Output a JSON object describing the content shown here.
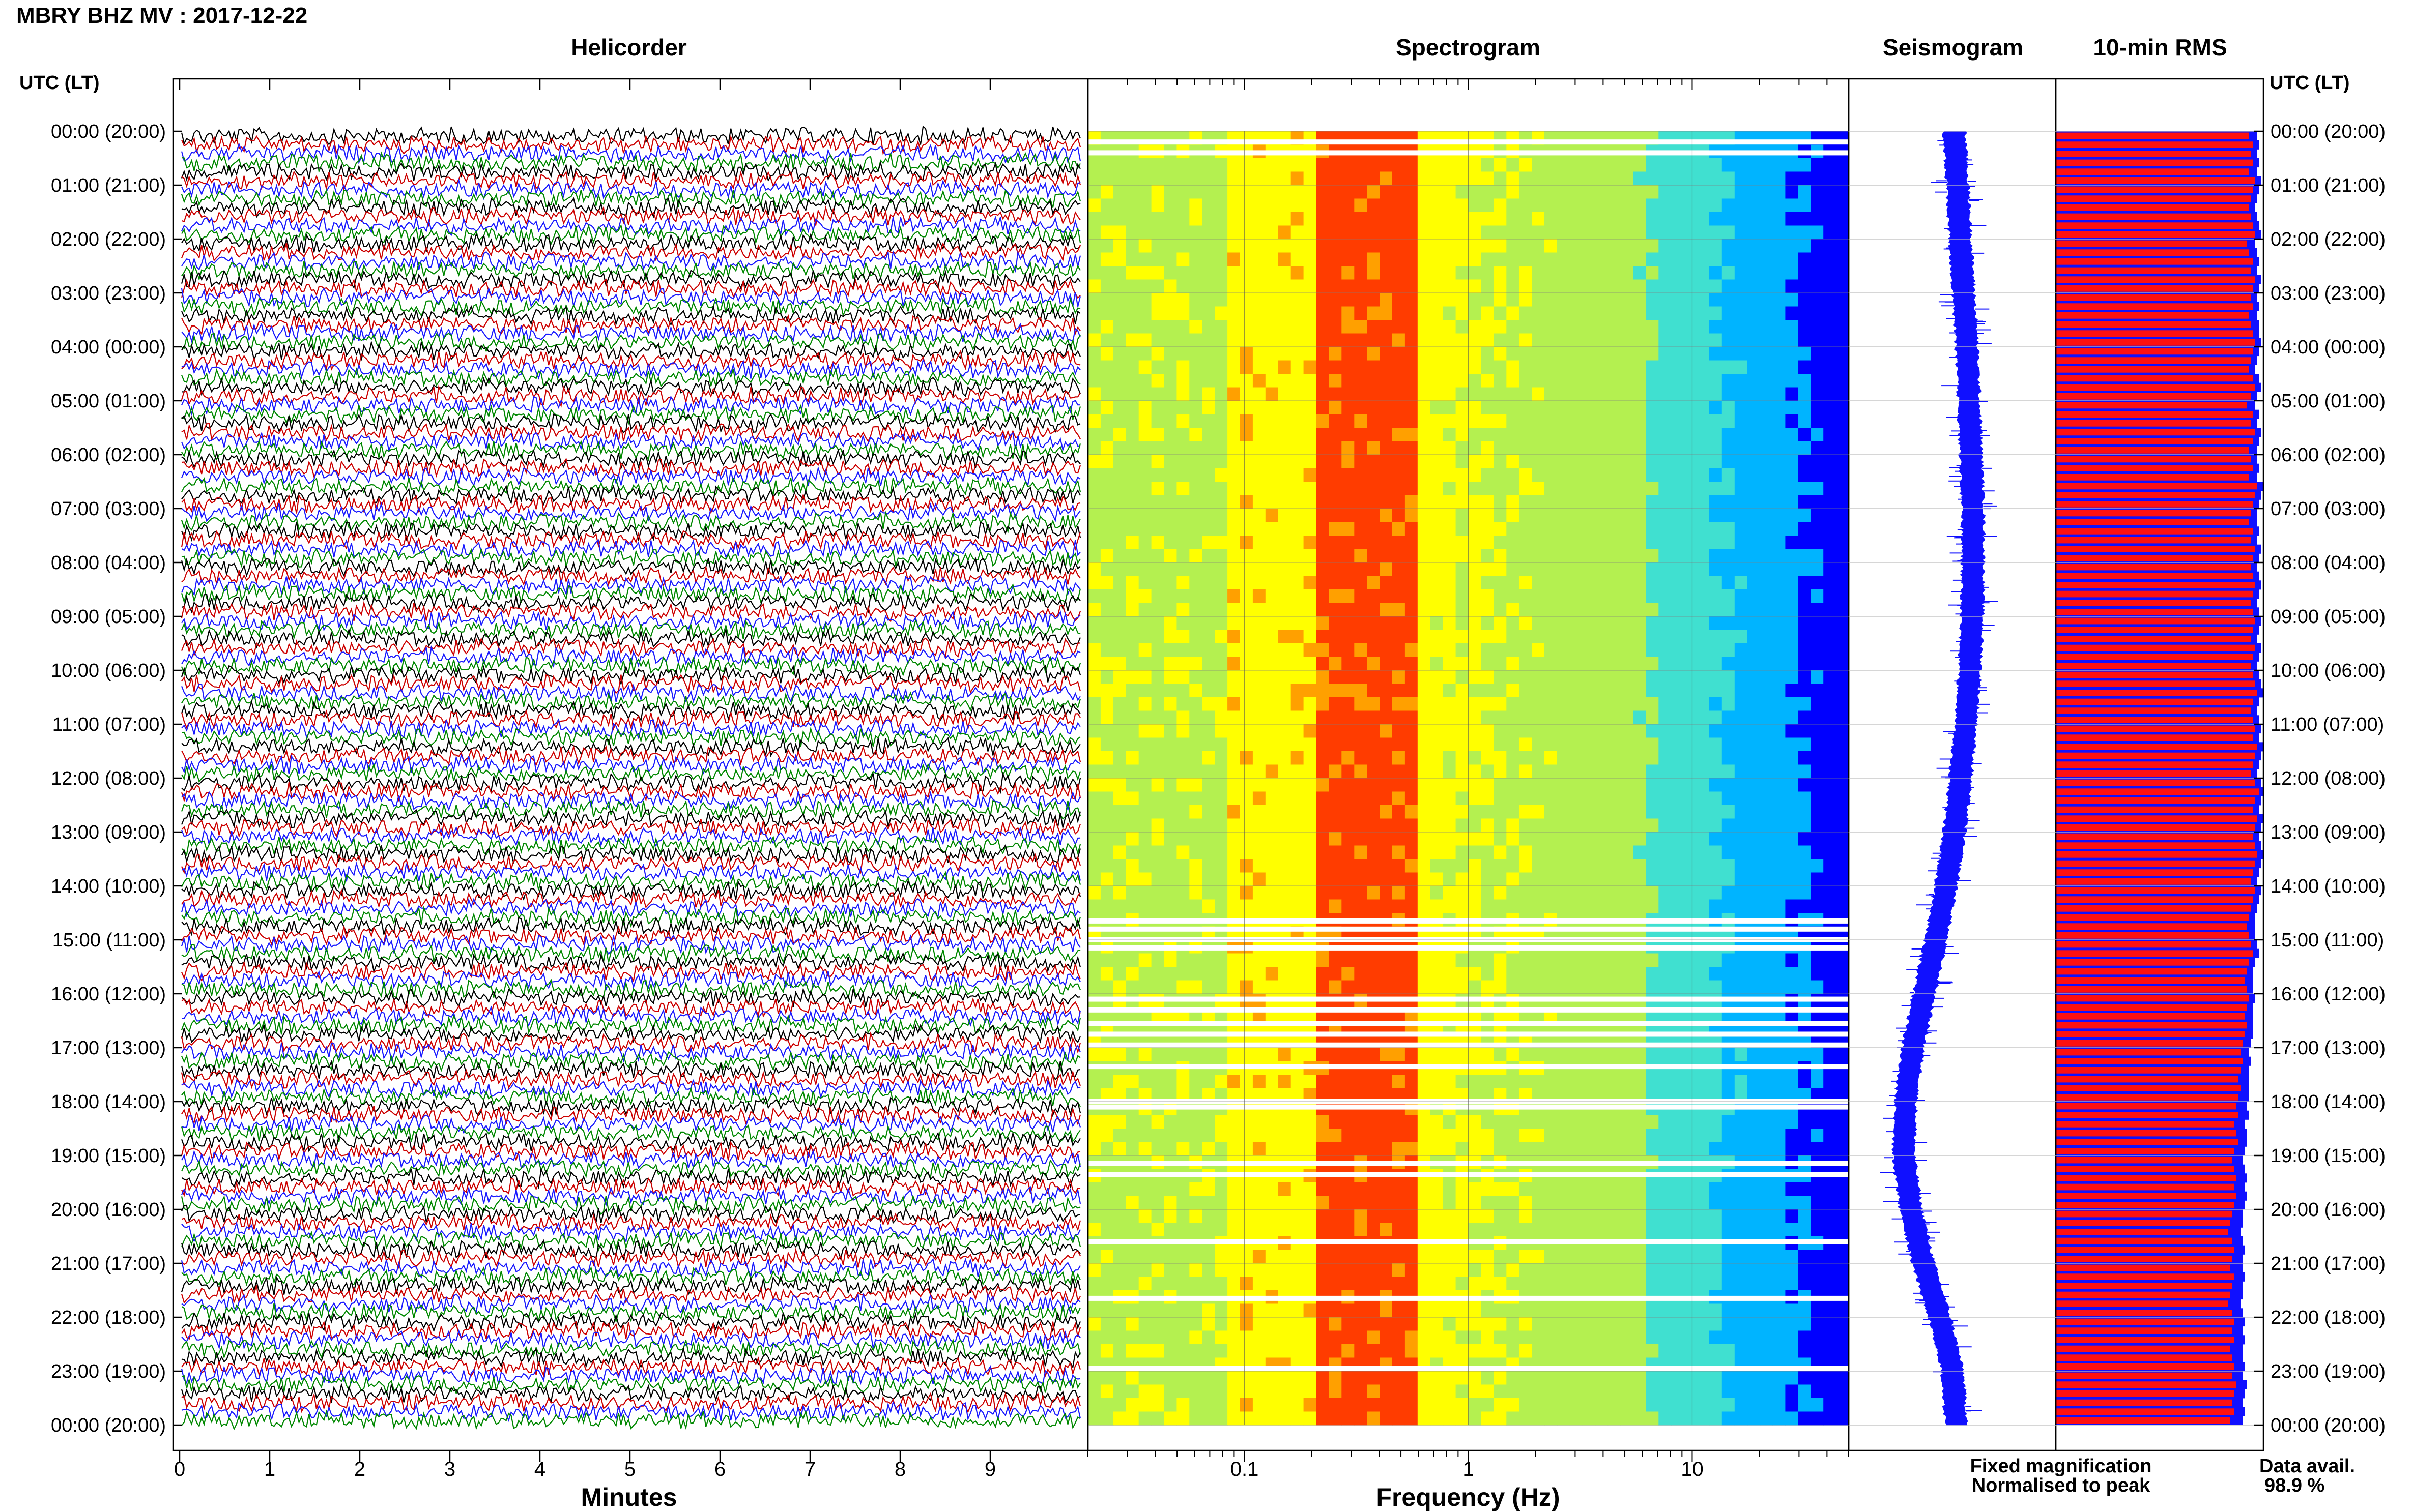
{
  "header": {
    "title": "MBRY BHZ MV : 2017-12-22"
  },
  "panels": {
    "helicorder": "Helicorder",
    "spectrogram": "Spectrogram",
    "seismogram": "Seismogram",
    "rms": "10-min RMS"
  },
  "axes": {
    "time_header_left": "UTC (LT)",
    "time_header_right": "UTC (LT)",
    "helicorder_xlabel": "Minutes",
    "spectrogram_xlabel": "Frequency (Hz)"
  },
  "legend": {
    "fixed": "Fixed magnification",
    "fixed_color": "#1010ff",
    "normalised": "Normalised to peak",
    "normalised_color": "#ff1010"
  },
  "availability": {
    "label": "Data avail.",
    "value": "98.9 %"
  },
  "chart_data": [
    {
      "type": "line",
      "title": "Helicorder",
      "xlabel": "Minutes",
      "x_ticks": [
        "0",
        "1",
        "2",
        "3",
        "4",
        "5",
        "6",
        "7",
        "8",
        "9"
      ],
      "xlim": [
        0,
        10
      ],
      "y_ticks": [
        "00:00 (20:00)",
        "01:00 (21:00)",
        "02:00 (22:00)",
        "03:00 (23:00)",
        "04:00 (00:00)",
        "05:00 (01:00)",
        "06:00 (02:00)",
        "07:00 (03:00)",
        "08:00 (04:00)",
        "09:00 (05:00)",
        "10:00 (06:00)",
        "11:00 (07:00)",
        "12:00 (08:00)",
        "13:00 (09:00)",
        "14:00 (10:00)",
        "15:00 (11:00)",
        "16:00 (12:00)",
        "17:00 (13:00)",
        "18:00 (14:00)",
        "19:00 (15:00)",
        "20:00 (16:00)",
        "21:00 (17:00)",
        "22:00 (18:00)",
        "23:00 (19:00)",
        "00:00 (20:00)"
      ],
      "rows_per_hour": 6,
      "trace_colors": [
        "#000000",
        "#cc0000",
        "#1a1aff",
        "#008800"
      ]
    },
    {
      "type": "heatmap",
      "title": "Spectrogram",
      "xlabel": "Frequency (Hz)",
      "x_scale": "log",
      "xlim": [
        0.02,
        50
      ],
      "x_ticks": [
        "0.1",
        "1",
        "10"
      ],
      "dominant_band_hz": [
        0.2,
        0.5
      ],
      "colormap": [
        "#00008b",
        "#0000ff",
        "#00b4ff",
        "#40e0d0",
        "#b4f050",
        "#ffff00",
        "#ffa000",
        "#ff3c00"
      ],
      "gaps_utc_hours": [
        0.2,
        0.4,
        14.65,
        14.8,
        15.0,
        15.15,
        16.1,
        16.3,
        16.55,
        16.75,
        16.95,
        17.35,
        18.0,
        18.1,
        19.15,
        19.35,
        20.6,
        21.65,
        22.95
      ]
    },
    {
      "type": "area",
      "title": "Seismogram",
      "description_units": "counts (unlabelled)",
      "xlim": [
        -1,
        1
      ],
      "center_offset": [
        [
          0,
          0.02
        ],
        [
          1,
          0.05
        ],
        [
          2,
          0.08
        ],
        [
          3,
          0.11
        ],
        [
          4,
          0.14
        ],
        [
          5,
          0.16
        ],
        [
          6,
          0.18
        ],
        [
          7,
          0.2
        ],
        [
          8,
          0.2
        ],
        [
          9,
          0.19
        ],
        [
          10,
          0.17
        ],
        [
          11,
          0.13
        ],
        [
          12,
          0.08
        ],
        [
          13,
          0.02
        ],
        [
          14,
          -0.06
        ],
        [
          15,
          -0.16
        ],
        [
          16,
          -0.27
        ],
        [
          17,
          -0.38
        ],
        [
          18,
          -0.45
        ],
        [
          19,
          -0.47
        ],
        [
          20,
          -0.4
        ],
        [
          21,
          -0.28
        ],
        [
          22,
          -0.12
        ],
        [
          23,
          0.0
        ],
        [
          24,
          0.04
        ]
      ],
      "half_width": 0.1
    },
    {
      "type": "bar",
      "title": "10-min RMS",
      "xlim": [
        0,
        1
      ],
      "normalised_to_peak": [
        0.93,
        0.95,
        0.94,
        0.95,
        0.93,
        0.96,
        0.95,
        0.94,
        0.93,
        0.94,
        0.95,
        0.96,
        0.92,
        0.93,
        0.95,
        0.94,
        0.96,
        0.95,
        0.94,
        0.95,
        0.93,
        0.94,
        0.95,
        0.96,
        0.95,
        0.94,
        0.93,
        0.95,
        0.96,
        0.94,
        0.92,
        0.95,
        0.94,
        0.96,
        0.95,
        0.93,
        0.94,
        0.95,
        0.93,
        0.97,
        0.96,
        0.95,
        0.94,
        0.93,
        0.95,
        0.94,
        0.96,
        0.95,
        0.94,
        0.95,
        0.96,
        0.95,
        0.94,
        0.95,
        0.96,
        0.95,
        0.94,
        0.96,
        0.95,
        0.94,
        0.95,
        0.96,
        0.97,
        0.95,
        0.94,
        0.95,
        0.96,
        0.95,
        0.97,
        0.96,
        0.95,
        0.94,
        0.96,
        0.98,
        0.96,
        0.95,
        0.97,
        0.96,
        0.95,
        0.96,
        0.97,
        0.96,
        0.95,
        0.94,
        0.96,
        0.95,
        0.94,
        0.93,
        0.92,
        0.93,
        0.94,
        0.95,
        0.93,
        0.92,
        0.91,
        0.92,
        0.93,
        0.92,
        0.91,
        0.92,
        0.91,
        0.9,
        0.89,
        0.9,
        0.89,
        0.88,
        0.89,
        0.88,
        0.87,
        0.88,
        0.86,
        0.87,
        0.88,
        0.86,
        0.85,
        0.86,
        0.87,
        0.86,
        0.87,
        0.86,
        0.85,
        0.84,
        0.83,
        0.85,
        0.86,
        0.85,
        0.84,
        0.86,
        0.85,
        0.84,
        0.83,
        0.85,
        0.86,
        0.85,
        0.86,
        0.84,
        0.85,
        0.86,
        0.85,
        0.87,
        0.86,
        0.85,
        0.86,
        0.84
      ],
      "fixed_magnification": [
        0.97,
        0.98,
        0.97,
        0.98,
        0.97,
        0.99,
        0.98,
        0.97,
        0.96,
        0.97,
        0.98,
        0.99,
        0.96,
        0.97,
        0.98,
        0.97,
        0.99,
        0.98,
        0.97,
        0.98,
        0.97,
        0.98,
        0.98,
        0.99,
        0.98,
        0.97,
        0.96,
        0.98,
        0.99,
        0.97,
        0.96,
        0.98,
        0.97,
        0.99,
        0.98,
        0.97,
        0.97,
        0.98,
        0.97,
        1.0,
        0.99,
        0.98,
        0.97,
        0.97,
        0.98,
        0.97,
        0.99,
        0.98,
        0.97,
        0.98,
        0.99,
        0.98,
        0.97,
        0.98,
        0.99,
        0.98,
        0.97,
        0.99,
        0.98,
        0.97,
        0.98,
        0.99,
        1.0,
        0.98,
        0.97,
        0.98,
        0.99,
        0.98,
        1.0,
        0.99,
        0.98,
        0.97,
        0.99,
        1.0,
        0.99,
        0.98,
        1.0,
        0.99,
        0.98,
        0.99,
        1.0,
        0.99,
        0.98,
        0.97,
        0.99,
        0.98,
        0.97,
        0.96,
        0.96,
        0.96,
        0.97,
        0.98,
        0.96,
        0.95,
        0.95,
        0.95,
        0.96,
        0.95,
        0.95,
        0.95,
        0.95,
        0.94,
        0.93,
        0.94,
        0.93,
        0.93,
        0.93,
        0.93,
        0.92,
        0.93,
        0.91,
        0.92,
        0.92,
        0.91,
        0.9,
        0.91,
        0.92,
        0.91,
        0.92,
        0.91,
        0.9,
        0.9,
        0.89,
        0.9,
        0.91,
        0.9,
        0.9,
        0.91,
        0.9,
        0.9,
        0.89,
        0.9,
        0.91,
        0.9,
        0.91,
        0.9,
        0.9,
        0.91,
        0.9,
        0.92,
        0.91,
        0.9,
        0.91,
        0.9
      ]
    }
  ]
}
